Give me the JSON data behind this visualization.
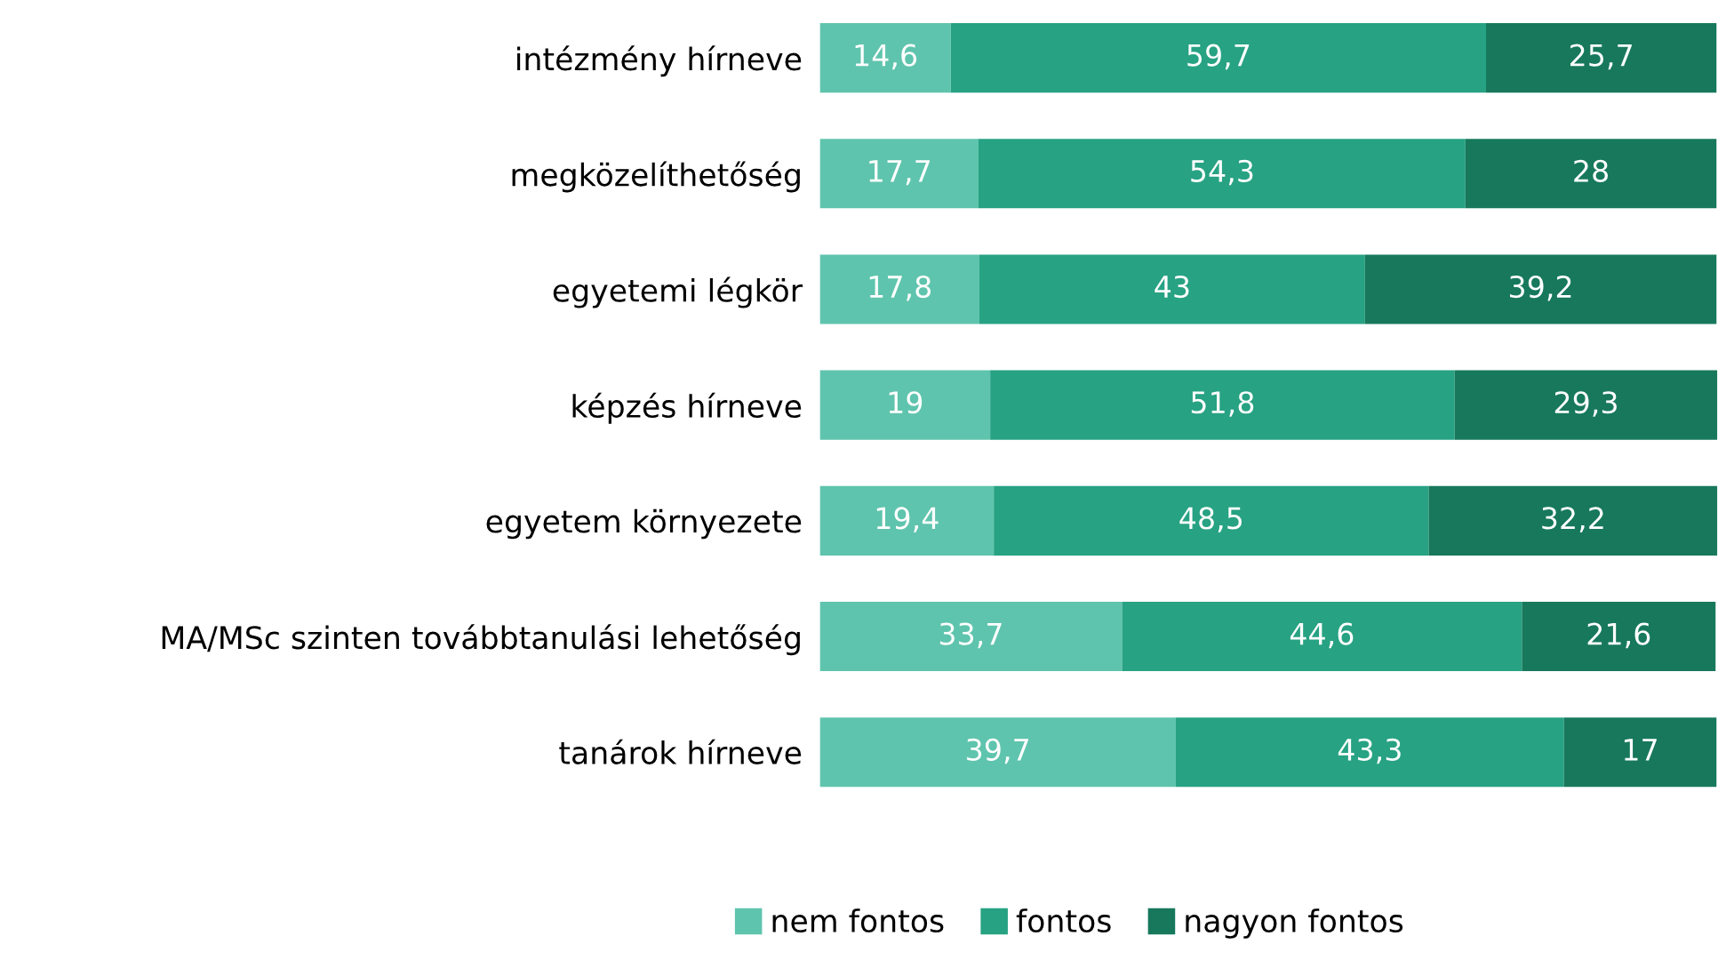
{
  "chart_data": {
    "type": "bar",
    "orientation": "horizontal",
    "stacked": true,
    "legend": "bottom",
    "grid": false,
    "tick_labels": "y",
    "categories": [
      "intézmény hírneve",
      "megközelíthetőség",
      "egyetemi légkör",
      "képzés hírneve",
      "egyetem környezete",
      "MA/MSc szinten továbbtanulási lehetőség",
      "tanárok hírneve"
    ],
    "series": [
      {
        "name": "nem fontos",
        "color": "#5fc4ad",
        "values": [
          14.6,
          17.7,
          17.8,
          19,
          19.4,
          33.7,
          39.7
        ],
        "value_labels": [
          "14,6",
          "17,7",
          "17,8",
          "19",
          "19,4",
          "33,7",
          "39,7"
        ]
      },
      {
        "name": "fontos",
        "color": "#27a283",
        "values": [
          59.7,
          54.3,
          43,
          51.8,
          48.5,
          44.6,
          43.3
        ],
        "value_labels": [
          "59,7",
          "54,3",
          "43",
          "51,8",
          "48,5",
          "44,6",
          "43,3"
        ]
      },
      {
        "name": "nagyon fontos",
        "color": "#17785c",
        "values": [
          25.7,
          28,
          39.2,
          29.3,
          32.2,
          21.6,
          17
        ],
        "value_labels": [
          "25,7",
          "28",
          "39,2",
          "29,3",
          "32,2",
          "21,6",
          "17"
        ]
      }
    ]
  }
}
